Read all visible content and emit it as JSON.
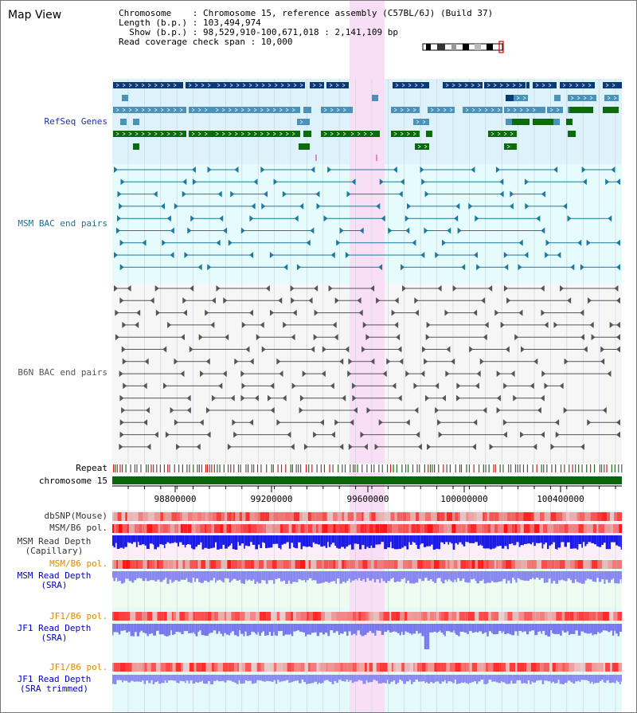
{
  "header": {
    "title": "Map View",
    "lines": [
      "Chromosome    : Chromosome 15, reference assembly (C57BL/6J) (Build 37)",
      "Length (b.p.) : 103,494,974",
      "  Show (b.p.) : 98,529,910-100,671,018 : 2,141,109 bp",
      "Read coverage check span : 10,000"
    ]
  },
  "tracks": {
    "refseq": "RefSeq Genes",
    "msm_bac": "MSM BAC end pairs",
    "b6n_bac": "B6N BAC end pairs",
    "repeat": "Repeat",
    "chromosome": "chromosome 15",
    "dbsnp": "dbSNP(Mouse)",
    "msm_b6_pol_1": "MSM/B6 pol.",
    "msm_depth_cap": "MSM Read Depth\n(Capillary)",
    "msm_b6_pol_2": "MSM/B6 pol.",
    "msm_depth_sra": "MSM Read Depth\n(SRA)",
    "jf1_b6_pol_1": "JF1/B6 pol.",
    "jf1_depth_sra": "JF1 Read Depth\n(SRA)",
    "jf1_b6_pol_2": "JF1/B6 pol.",
    "jf1_depth_trim": "JF1 Read Depth\n(SRA trimmed)"
  },
  "axis": {
    "ticks": [
      "98800000",
      "99200000",
      "99600000",
      "100000000",
      "100400000"
    ]
  },
  "colors": {
    "refseq_bg": "#ddf2fb",
    "bac_bg": "#e6fbfb",
    "highlight": "#f9dff5",
    "gene_dark": "#0a3a78",
    "gene_mid": "#4a92b8",
    "gene_green": "#0d6b0d",
    "bac_msm": "#1c7aa0",
    "bac_b6n": "#555555",
    "chrom_bar": "#0a640a",
    "label_blue": "#1c2fa8",
    "label_teal": "#1d6f8f",
    "label_orange": "#e08a00",
    "label_darkblue": "#0000c8"
  }
}
